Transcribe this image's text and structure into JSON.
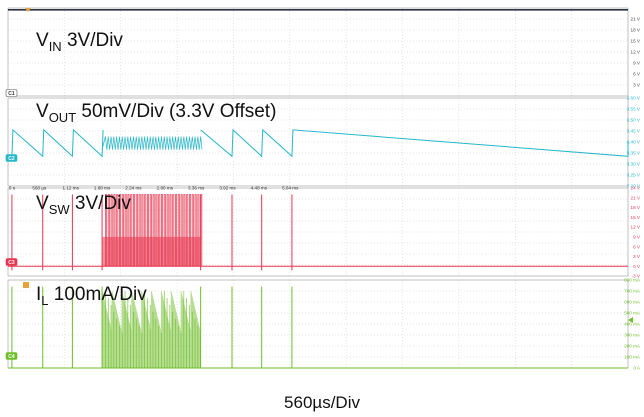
{
  "chart_data": {
    "type": "line",
    "title": "",
    "xlabel": "560µs/Div",
    "time_ticks": [
      "0 s",
      "560 µs",
      "1.12 ms",
      "1.68 ms",
      "2.24 ms",
      "2.80 ms",
      "3.36 ms",
      "3.92 ms",
      "4.48 ms",
      "5.04 ms"
    ],
    "burst_ms": [
      1.68,
      3.44
    ],
    "colors": {
      "vin": "#2a3446",
      "vout": "#26b7c9",
      "vsw": "#e8354f",
      "il": "#6fbe2a",
      "grid": "#b8b8b8"
    },
    "channels": [
      {
        "id": "C1",
        "name": "VIN",
        "main": "V",
        "subscript": "IN",
        "scale": "3V/Div",
        "unit": "V",
        "ylim": [
          0,
          24
        ],
        "ticks": [
          "21 V",
          "18 V",
          "15 V",
          "12 V",
          "9 V",
          "6 V",
          "3 V"
        ],
        "dc_level_V": 23.5
      },
      {
        "id": "C2",
        "name": "VOUT",
        "main": "V",
        "subscript": "OUT",
        "scale": "50mV/Div (3.3V Offset)",
        "unit": "V",
        "ylim": [
          3.2,
          3.6
        ],
        "ticks": [
          "3.60 V",
          "3.55 V",
          "3.50 V",
          "3.45 V",
          "3.40 V",
          "3.35 V",
          "3.30 V",
          "3.25 V",
          "3.20 V"
        ],
        "ripple_V": [
          3.335,
          3.455
        ],
        "burst_ripple_V": [
          3.365,
          3.425
        ],
        "sawtooth_peaks_ms": [
          0.07,
          0.62,
          1.15,
          1.68,
          3.44,
          4.0,
          4.53,
          5.07
        ]
      },
      {
        "id": "C3",
        "name": "VSW",
        "main": "V",
        "subscript": "SW",
        "scale": "3V/Div",
        "unit": "V",
        "ylim": [
          -3,
          24
        ],
        "ticks": [
          "24 V",
          "21 V",
          "18 V",
          "15 V",
          "12 V",
          "9 V",
          "6 V",
          "3 V",
          "0 V",
          "-3 V"
        ],
        "high_V": 22,
        "low_V": 0,
        "pulse_ms": [
          0.07,
          0.62,
          1.15,
          1.68,
          3.44,
          4.0,
          4.53,
          5.07
        ]
      },
      {
        "id": "C4",
        "name": "IL",
        "main": "I",
        "subscript": "L",
        "scale": "100mA/Div",
        "unit": "mA",
        "ylim": [
          0,
          800
        ],
        "ticks": [
          "800 mA",
          "700 mA",
          "600 mA",
          "500 mA",
          "400 mA",
          "300 mA",
          "200 mA",
          "100 mA",
          "0 A"
        ],
        "peak_mA": 740,
        "burst_peak_mA": [
          700,
          320
        ],
        "pulse_ms": [
          0.07,
          0.62,
          1.15,
          1.68,
          3.44,
          4.0,
          4.53,
          5.07
        ]
      }
    ]
  }
}
